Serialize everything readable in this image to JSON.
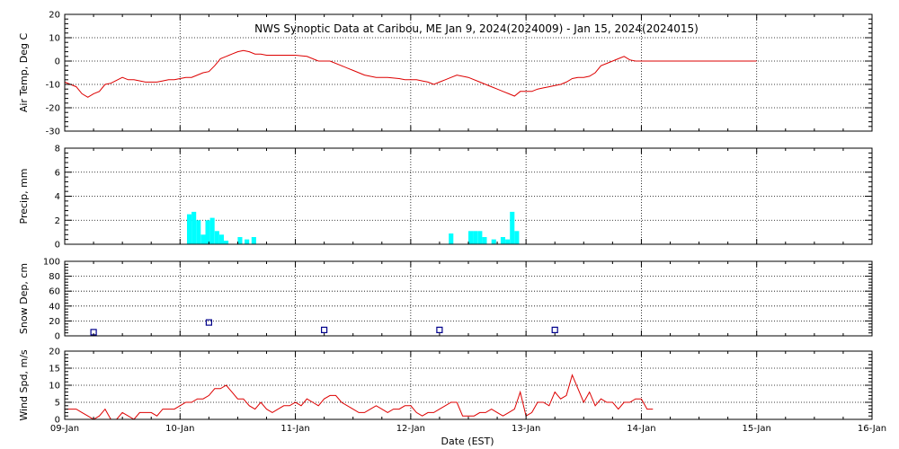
{
  "chart_data": {
    "type": "line",
    "title": "NWS Synoptic Data at Caribou, ME   Jan  9, 2024(2024009) - Jan 15, 2024(2024015)",
    "xlabel": "Date (EST)",
    "x_tick_labels": [
      "09-Jan",
      "10-Jan",
      "11-Jan",
      "12-Jan",
      "13-Jan",
      "14-Jan",
      "15-Jan",
      "16-Jan"
    ],
    "xlim_days": [
      0,
      7
    ],
    "grid": true,
    "colors": {
      "temp": "#dd0000",
      "precip": "#00ffff",
      "snow": "#00008b",
      "wind": "#dd0000"
    },
    "panels": [
      {
        "id": "airtemp",
        "type": "line",
        "ylabel": "Air Temp, Deg C",
        "ylim": [
          -30,
          20
        ],
        "yticks": [
          -30,
          -20,
          -10,
          0,
          10,
          20
        ],
        "series": [
          {
            "x": [
              0,
              0.05,
              0.1,
              0.15,
              0.2,
              0.25,
              0.3,
              0.35,
              0.4,
              0.5,
              0.55,
              0.6,
              0.7,
              0.8,
              0.85,
              0.9,
              0.95,
              1.0,
              1.05,
              1.1,
              1.15,
              1.2,
              1.25,
              1.3,
              1.35,
              1.4,
              1.45,
              1.5,
              1.55,
              1.6,
              1.65,
              1.7,
              1.75,
              1.8,
              1.85,
              1.9,
              1.95,
              2.0,
              2.1,
              2.2,
              2.3,
              2.4,
              2.45,
              2.5,
              2.6,
              2.7,
              2.8,
              2.9,
              2.95,
              3.0,
              3.05,
              3.1,
              3.15,
              3.2,
              3.25,
              3.3,
              3.35,
              3.4,
              3.5,
              3.6,
              3.65,
              3.7,
              3.75,
              3.8,
              3.85,
              3.9,
              3.95,
              4.0,
              4.05,
              4.1,
              4.15,
              4.2,
              4.25,
              4.3,
              4.35,
              4.4,
              4.45,
              4.5,
              4.55,
              4.6,
              4.65,
              4.7,
              4.75,
              4.8,
              4.85,
              4.9,
              4.95,
              5.0,
              5.5,
              6.0
            ],
            "y": [
              -9,
              -10,
              -11,
              -14,
              -15.5,
              -14,
              -13,
              -10,
              -9.5,
              -7,
              -8,
              -8,
              -9,
              -9,
              -8.5,
              -8,
              -8,
              -7.5,
              -7,
              -7,
              -6,
              -5,
              -4.5,
              -2,
              1,
              2,
              3,
              4,
              4.5,
              4,
              3,
              3,
              2.5,
              2.5,
              2.5,
              2.5,
              2.5,
              2.5,
              2,
              0,
              0,
              -2,
              -3,
              -4,
              -6,
              -7,
              -7,
              -7.5,
              -8,
              -8,
              -8,
              -8.5,
              -9,
              -10,
              -9,
              -8,
              -7,
              -6,
              -7,
              -9,
              -10,
              -11,
              -12,
              -13,
              -14,
              -15,
              -13,
              -13,
              -13,
              -12,
              -11.5,
              -11,
              -10.5,
              -10,
              -9,
              -7.5,
              -7,
              -7,
              -6.5,
              -5,
              -2,
              -1,
              0,
              1,
              2,
              0.5,
              0,
              0,
              0,
              0
            ]
          }
        ]
      },
      {
        "id": "precip",
        "type": "bar",
        "ylabel": "Precip, mm",
        "ylim": [
          0,
          8
        ],
        "yticks": [
          0,
          2,
          4,
          6,
          8
        ],
        "bar_width_days": 0.04,
        "series": [
          {
            "x": [
              1.08,
              1.12,
              1.16,
              1.2,
              1.24,
              1.28,
              1.32,
              1.36,
              1.4,
              1.52,
              1.58,
              1.64,
              1.7,
              3.35,
              3.52,
              3.56,
              3.6,
              3.64,
              3.68,
              3.72,
              3.76,
              3.8,
              3.84,
              3.88,
              3.92
            ],
            "y": [
              2.5,
              2.7,
              2.0,
              0.8,
              2.0,
              2.2,
              1.1,
              0.8,
              0.3,
              0.6,
              0.4,
              0.6,
              0.0,
              0.9,
              1.1,
              1.1,
              1.1,
              0.6,
              0.0,
              0.4,
              0.0,
              0.6,
              0.4,
              2.7,
              1.1
            ]
          }
        ]
      },
      {
        "id": "snowdepth",
        "type": "scatter",
        "ylabel": "Snow Dep, cm",
        "ylim": [
          0,
          100
        ],
        "yticks": [
          0,
          20,
          40,
          60,
          80,
          100
        ],
        "series": [
          {
            "x": [
              0.25,
              1.25,
              2.25,
              3.25,
              4.25
            ],
            "y": [
              5,
              18,
              8,
              8,
              8
            ]
          }
        ]
      },
      {
        "id": "wind",
        "type": "line",
        "ylabel": "Wind Spd, m/s",
        "ylim": [
          0,
          20
        ],
        "yticks": [
          0,
          5,
          10,
          15,
          20
        ],
        "series": [
          {
            "x": [
              0,
              0.1,
              0.15,
              0.2,
              0.25,
              0.3,
              0.35,
              0.4,
              0.45,
              0.5,
              0.55,
              0.6,
              0.65,
              0.7,
              0.75,
              0.8,
              0.85,
              0.9,
              0.95,
              1.0,
              1.05,
              1.1,
              1.15,
              1.2,
              1.25,
              1.3,
              1.35,
              1.4,
              1.45,
              1.5,
              1.55,
              1.6,
              1.65,
              1.7,
              1.75,
              1.8,
              1.85,
              1.9,
              1.95,
              2.0,
              2.05,
              2.1,
              2.15,
              2.2,
              2.25,
              2.3,
              2.35,
              2.4,
              2.45,
              2.5,
              2.55,
              2.6,
              2.65,
              2.7,
              2.75,
              2.8,
              2.85,
              2.9,
              2.95,
              3.0,
              3.05,
              3.1,
              3.15,
              3.2,
              3.25,
              3.3,
              3.35,
              3.4,
              3.45,
              3.5,
              3.55,
              3.6,
              3.65,
              3.7,
              3.75,
              3.8,
              3.85,
              3.9,
              3.95,
              4.0,
              4.05,
              4.1,
              4.15,
              4.2,
              4.25,
              4.3,
              4.35,
              4.4,
              4.45,
              4.5,
              4.55,
              4.6,
              4.65,
              4.7,
              4.75,
              4.8,
              4.85,
              4.9,
              4.95,
              5.0,
              5.05,
              5.1
            ],
            "y": [
              3,
              3,
              2,
              1,
              0,
              1,
              3,
              0,
              0,
              2,
              1,
              0,
              2,
              2,
              2,
              1,
              3,
              3,
              3,
              4,
              5,
              5,
              6,
              6,
              7,
              9,
              9,
              10,
              8,
              6,
              6,
              4,
              3,
              5,
              3,
              2,
              3,
              4,
              4,
              5,
              4,
              6,
              5,
              4,
              6,
              7,
              7,
              5,
              4,
              3,
              2,
              2,
              3,
              4,
              3,
              2,
              3,
              3,
              4,
              4,
              2,
              1,
              2,
              2,
              3,
              4,
              5,
              5,
              1,
              1,
              1,
              2,
              2,
              3,
              2,
              1,
              2,
              3,
              8,
              1,
              2,
              5,
              5,
              4,
              8,
              6,
              7,
              13,
              9,
              5,
              8,
              4,
              6,
              5,
              5,
              3,
              5,
              5,
              6,
              6,
              3,
              3
            ]
          }
        ]
      }
    ]
  }
}
